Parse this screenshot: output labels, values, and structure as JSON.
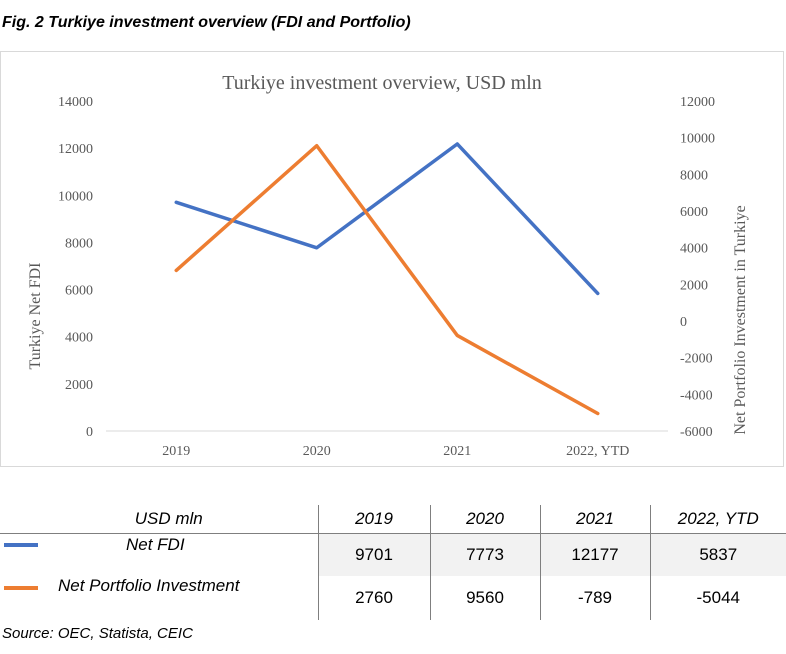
{
  "figure_caption": "Fig. 2 Turkiye investment overview (FDI and Portfolio)",
  "chart_data": {
    "type": "line",
    "title": "Turkiye investment overview,  USD mln",
    "categories": [
      "2019",
      "2020",
      "2021",
      "2022, YTD"
    ],
    "series": [
      {
        "name": "Net FDI",
        "axis": "left",
        "color": "#4472c4",
        "values": [
          9701,
          7773,
          12177,
          5837
        ]
      },
      {
        "name": "Net Portfolio Investment",
        "axis": "right",
        "color": "#ed7d31",
        "values": [
          2760,
          9560,
          -789,
          -5044
        ]
      }
    ],
    "ylabel_left": "Turkiye Net FDI",
    "ylabel_right": "Net Portfolio Investment in Turkiye",
    "ylim_left": [
      0,
      14000
    ],
    "ylim_right": [
      -6000,
      12000
    ],
    "yticks_left": [
      "14000",
      "12000",
      "10000",
      "8000",
      "6000",
      "4000",
      "2000",
      "0"
    ],
    "yticks_right": [
      "12000",
      "10000",
      "8000",
      "6000",
      "4000",
      "2000",
      "0",
      "-2000",
      "-4000",
      "-6000"
    ],
    "grid": false
  },
  "table": {
    "header_label": "USD mln",
    "columns": [
      "2019",
      "2020",
      "2021",
      "2022, YTD"
    ],
    "rows": [
      {
        "label": "Net FDI",
        "values": [
          "9701",
          "7773",
          "12177",
          "5837"
        ]
      },
      {
        "label": "Net Portfolio Investment",
        "values": [
          "2760",
          "9560",
          "-789",
          "-5044"
        ]
      }
    ]
  },
  "colors": {
    "fdi": "#4472c4",
    "portfolio": "#ed7d31",
    "row_shade": "#f2f2f2"
  },
  "source": "Source: OEC, Statista, CEIC"
}
